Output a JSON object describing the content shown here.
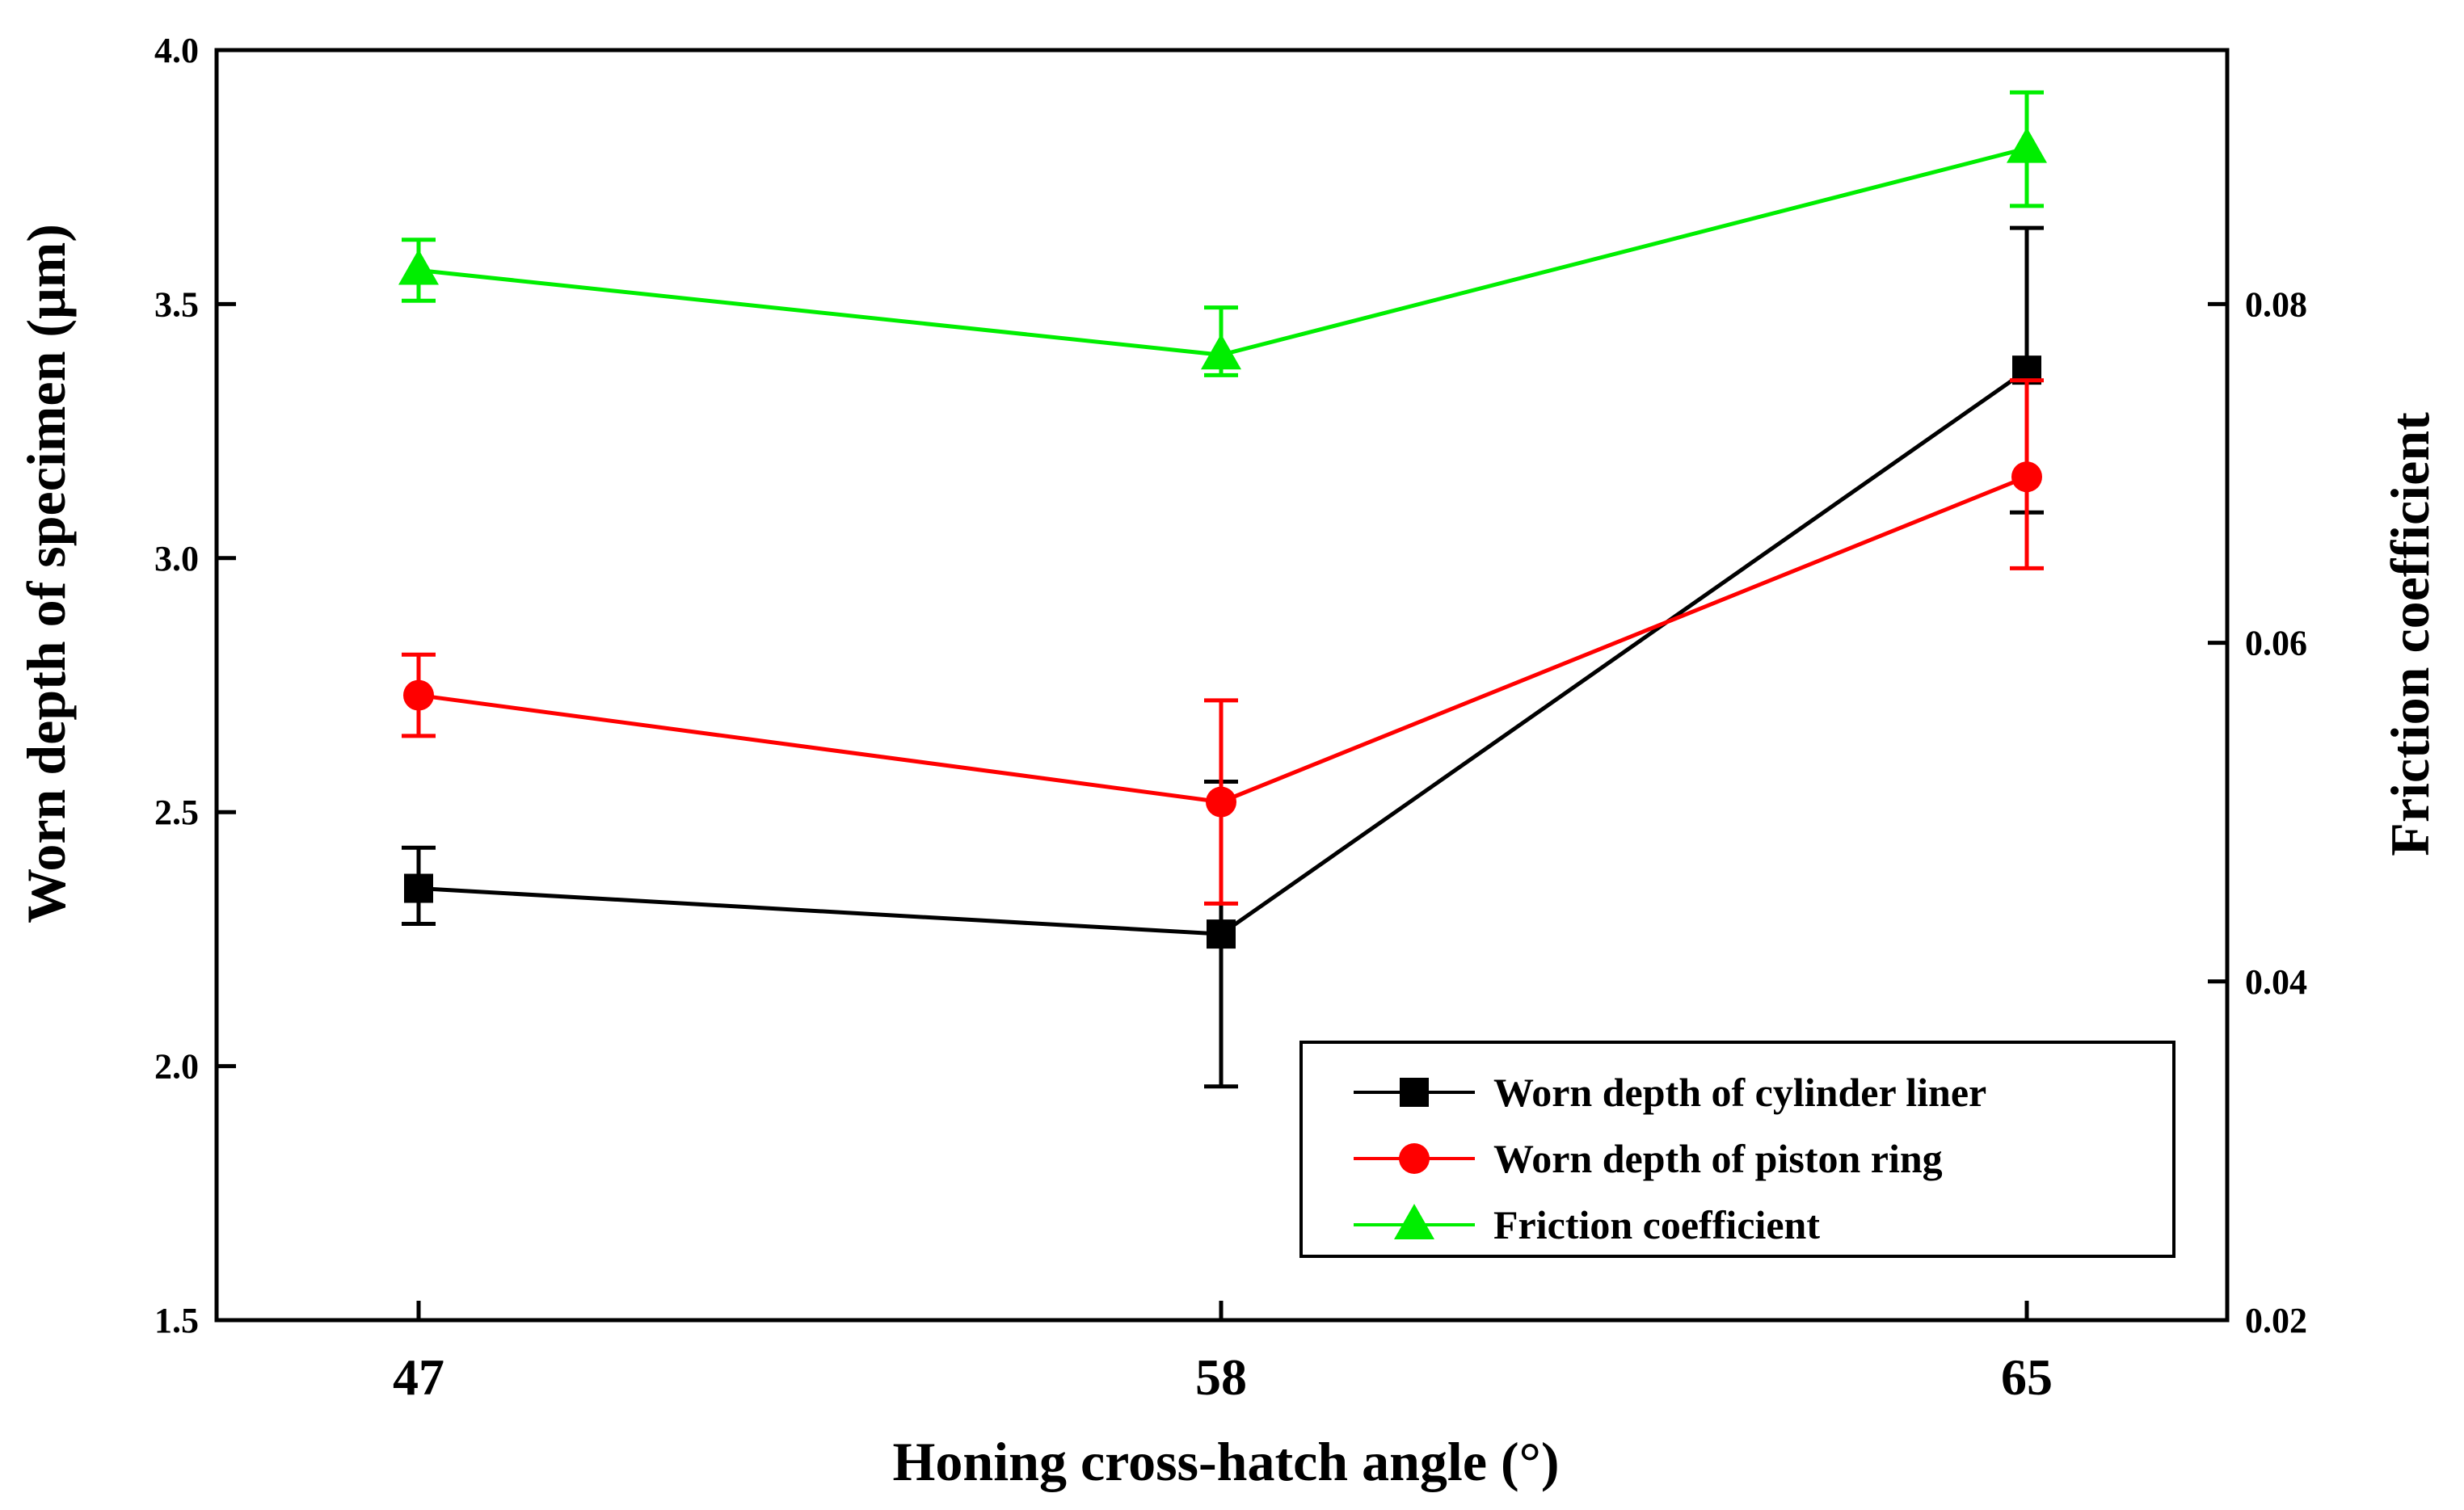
{
  "chart_data": {
    "type": "line",
    "title": "",
    "xlabel": "Honing cross-hatch angle (°)",
    "ylabel": "Worn depth of specimen (μm)",
    "y2label": "Friction coefficient",
    "categories": [
      "47",
      "58",
      "65"
    ],
    "ylim": [
      1.5,
      4.0
    ],
    "yticks": [
      "1.5",
      "2.0",
      "2.5",
      "3.0",
      "3.5",
      "4.0"
    ],
    "y2lim": [
      0.02,
      0.095
    ],
    "y2ticks": [
      "0.02",
      "0.04",
      "0.06",
      "0.08"
    ],
    "grid": false,
    "legend_position": "bottom-right",
    "series": [
      {
        "name": "Worn depth of cylinder liner",
        "axis": "left",
        "color": "#000000",
        "marker": "square",
        "values": [
          2.35,
          2.26,
          3.37
        ],
        "err_low": [
          2.28,
          1.96,
          3.09
        ],
        "err_high": [
          2.43,
          2.56,
          3.65
        ]
      },
      {
        "name": "Worn depth of piston ring",
        "axis": "left",
        "color": "#ff0000",
        "marker": "circle",
        "values": [
          2.73,
          2.52,
          3.16
        ],
        "err_low": [
          2.65,
          2.32,
          2.98
        ],
        "err_high": [
          2.81,
          2.72,
          3.35
        ]
      },
      {
        "name": "Friction coefficient",
        "axis": "right",
        "color": "#00ee00",
        "marker": "triangle",
        "values": [
          0.082,
          0.077,
          0.0892
        ],
        "err_low": [
          0.0802,
          0.0758,
          0.0858
        ],
        "err_high": [
          0.0838,
          0.0798,
          0.0925
        ]
      }
    ]
  }
}
